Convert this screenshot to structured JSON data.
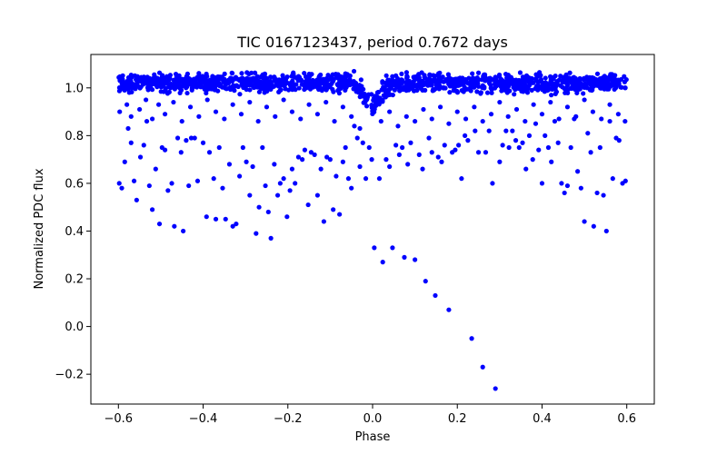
{
  "chart_data": {
    "type": "scatter",
    "title": "TIC 0167123437, period 0.7672 days",
    "xlabel": "Phase",
    "ylabel": "Normalized PDC flux",
    "xlim": [
      -0.665,
      0.665
    ],
    "ylim": [
      -0.325,
      1.14
    ],
    "xticks": [
      -0.6,
      -0.4,
      -0.2,
      0.0,
      0.2,
      0.4,
      0.6
    ],
    "xtick_labels": [
      "−0.6",
      "−0.4",
      "−0.2",
      "0.0",
      "0.2",
      "0.4",
      "0.6"
    ],
    "yticks": [
      -0.2,
      0.0,
      0.2,
      0.4,
      0.6,
      0.8,
      1.0
    ],
    "ytick_labels": [
      "−0.2",
      "0.0",
      "0.2",
      "0.4",
      "0.6",
      "0.8",
      "1.0"
    ],
    "grid": false,
    "marker_color": "#0000ff",
    "dense_band": {
      "x_range": [
        -0.6,
        0.6
      ],
      "y_center": 1.02,
      "y_spread": 0.035,
      "dip_center": 0.0,
      "dip_depth": 0.1,
      "dip_halfwidth": 0.04
    },
    "series": [
      {
        "values": [
          [
            -0.598,
            0.6
          ],
          [
            -0.592,
            0.58
          ],
          [
            -0.585,
            0.69
          ],
          [
            -0.577,
            0.83
          ],
          [
            -0.57,
            0.77
          ],
          [
            -0.563,
            0.61
          ],
          [
            -0.557,
            0.53
          ],
          [
            -0.548,
            0.71
          ],
          [
            -0.54,
            0.76
          ],
          [
            -0.533,
            0.86
          ],
          [
            -0.527,
            0.59
          ],
          [
            -0.52,
            0.49
          ],
          [
            -0.512,
            0.66
          ],
          [
            -0.503,
            0.43
          ],
          [
            -0.497,
            0.75
          ],
          [
            -0.49,
            0.74
          ],
          [
            -0.483,
            0.57
          ],
          [
            -0.474,
            0.6
          ],
          [
            -0.468,
            0.42
          ],
          [
            -0.46,
            0.79
          ],
          [
            -0.452,
            0.73
          ],
          [
            -0.447,
            0.4
          ],
          [
            -0.44,
            0.78
          ],
          [
            -0.434,
            0.59
          ],
          [
            -0.428,
            0.79
          ],
          [
            -0.42,
            0.79
          ],
          [
            -0.413,
            0.61
          ],
          [
            -0.4,
            0.77
          ],
          [
            -0.392,
            0.46
          ],
          [
            -0.385,
            0.73
          ],
          [
            -0.375,
            0.62
          ],
          [
            -0.37,
            0.45
          ],
          [
            -0.362,
            0.75
          ],
          [
            -0.354,
            0.58
          ],
          [
            -0.347,
            0.45
          ],
          [
            -0.338,
            0.68
          ],
          [
            -0.33,
            0.42
          ],
          [
            -0.322,
            0.43
          ],
          [
            -0.314,
            0.63
          ],
          [
            -0.306,
            0.75
          ],
          [
            -0.298,
            0.69
          ],
          [
            -0.29,
            0.55
          ],
          [
            -0.283,
            0.67
          ],
          [
            -0.275,
            0.39
          ],
          [
            -0.268,
            0.5
          ],
          [
            -0.26,
            0.75
          ],
          [
            -0.253,
            0.59
          ],
          [
            -0.246,
            0.48
          ],
          [
            -0.24,
            0.37
          ],
          [
            -0.232,
            0.68
          ],
          [
            -0.224,
            0.55
          ],
          [
            -0.218,
            0.6
          ],
          [
            -0.21,
            0.62
          ],
          [
            -0.202,
            0.46
          ],
          [
            -0.195,
            0.57
          ],
          [
            -0.19,
            0.66
          ],
          [
            -0.183,
            0.6
          ],
          [
            -0.175,
            0.71
          ],
          [
            -0.166,
            0.7
          ],
          [
            -0.16,
            0.74
          ],
          [
            -0.152,
            0.51
          ],
          [
            -0.145,
            0.73
          ],
          [
            -0.137,
            0.72
          ],
          [
            -0.13,
            0.55
          ],
          [
            -0.122,
            0.66
          ],
          [
            -0.115,
            0.44
          ],
          [
            -0.108,
            0.71
          ],
          [
            -0.1,
            0.7
          ],
          [
            -0.093,
            0.49
          ],
          [
            -0.086,
            0.63
          ],
          [
            -0.078,
            0.47
          ],
          [
            -0.07,
            0.69
          ],
          [
            -0.064,
            0.75
          ],
          [
            -0.057,
            0.62
          ],
          [
            -0.05,
            0.58
          ],
          [
            -0.043,
            0.84
          ],
          [
            -0.036,
            0.79
          ],
          [
            -0.03,
            0.67
          ],
          [
            -0.023,
            0.77
          ],
          [
            -0.016,
            0.62
          ],
          [
            -0.008,
            0.75
          ],
          [
            -0.002,
            0.7
          ],
          [
            0.004,
            0.33
          ],
          [
            0.016,
            0.62
          ],
          [
            0.024,
            0.27
          ],
          [
            0.032,
            0.7
          ],
          [
            0.04,
            0.67
          ],
          [
            0.047,
            0.33
          ],
          [
            0.055,
            0.76
          ],
          [
            0.063,
            0.72
          ],
          [
            0.07,
            0.75
          ],
          [
            0.075,
            0.29
          ],
          [
            0.083,
            0.68
          ],
          [
            0.09,
            0.77
          ],
          [
            0.1,
            0.28
          ],
          [
            0.11,
            0.72
          ],
          [
            0.118,
            0.66
          ],
          [
            0.125,
            0.19
          ],
          [
            0.133,
            0.79
          ],
          [
            0.14,
            0.73
          ],
          [
            0.148,
            0.13
          ],
          [
            0.155,
            0.71
          ],
          [
            0.163,
            0.69
          ],
          [
            0.17,
            0.76
          ],
          [
            0.18,
            0.07
          ],
          [
            0.188,
            0.73
          ],
          [
            0.195,
            0.74
          ],
          [
            0.203,
            0.76
          ],
          [
            0.21,
            0.62
          ],
          [
            0.218,
            0.8
          ],
          [
            0.225,
            0.78
          ],
          [
            0.234,
            -0.05
          ],
          [
            0.242,
            0.82
          ],
          [
            0.25,
            0.73
          ],
          [
            0.26,
            -0.17
          ],
          [
            0.267,
            0.73
          ],
          [
            0.275,
            0.82
          ],
          [
            0.29,
            -0.26
          ],
          [
            0.283,
            0.6
          ],
          [
            0.3,
            0.69
          ],
          [
            0.307,
            0.76
          ],
          [
            0.315,
            0.82
          ],
          [
            0.322,
            0.75
          ],
          [
            0.33,
            0.82
          ],
          [
            0.338,
            0.78
          ],
          [
            0.346,
            0.75
          ],
          [
            0.354,
            0.77
          ],
          [
            0.362,
            0.66
          ],
          [
            0.37,
            0.8
          ],
          [
            0.378,
            0.7
          ],
          [
            0.385,
            0.85
          ],
          [
            0.392,
            0.74
          ],
          [
            0.4,
            0.6
          ],
          [
            0.407,
            0.8
          ],
          [
            0.415,
            0.75
          ],
          [
            0.422,
            0.69
          ],
          [
            0.43,
            0.86
          ],
          [
            0.438,
            0.77
          ],
          [
            0.446,
            0.6
          ],
          [
            0.453,
            0.56
          ],
          [
            0.46,
            0.59
          ],
          [
            0.468,
            0.75
          ],
          [
            0.476,
            0.87
          ],
          [
            0.484,
            0.65
          ],
          [
            0.492,
            0.58
          ],
          [
            0.5,
            0.44
          ],
          [
            0.508,
            0.81
          ],
          [
            0.515,
            0.73
          ],
          [
            0.522,
            0.42
          ],
          [
            0.53,
            0.56
          ],
          [
            0.537,
            0.75
          ],
          [
            0.545,
            0.55
          ],
          [
            0.552,
            0.4
          ],
          [
            0.56,
            0.86
          ],
          [
            0.567,
            0.62
          ],
          [
            0.575,
            0.79
          ],
          [
            0.582,
            0.78
          ],
          [
            0.59,
            0.6
          ],
          [
            0.597,
            0.61
          ],
          [
            -0.597,
            0.9
          ],
          [
            -0.58,
            0.93
          ],
          [
            -0.57,
            0.88
          ],
          [
            -0.55,
            0.91
          ],
          [
            -0.535,
            0.95
          ],
          [
            -0.52,
            0.87
          ],
          [
            -0.505,
            0.93
          ],
          [
            -0.49,
            0.89
          ],
          [
            -0.47,
            0.94
          ],
          [
            -0.45,
            0.86
          ],
          [
            -0.43,
            0.92
          ],
          [
            -0.41,
            0.88
          ],
          [
            -0.39,
            0.95
          ],
          [
            -0.37,
            0.9
          ],
          [
            -0.35,
            0.87
          ],
          [
            -0.33,
            0.93
          ],
          [
            -0.31,
            0.89
          ],
          [
            -0.29,
            0.94
          ],
          [
            -0.27,
            0.86
          ],
          [
            -0.25,
            0.92
          ],
          [
            -0.23,
            0.88
          ],
          [
            -0.21,
            0.95
          ],
          [
            -0.19,
            0.9
          ],
          [
            -0.17,
            0.87
          ],
          [
            -0.15,
            0.93
          ],
          [
            -0.13,
            0.89
          ],
          [
            -0.11,
            0.94
          ],
          [
            -0.09,
            0.86
          ],
          [
            -0.07,
            0.92
          ],
          [
            -0.05,
            0.88
          ],
          [
            -0.03,
            0.83
          ],
          [
            0.02,
            0.86
          ],
          [
            0.04,
            0.9
          ],
          [
            0.06,
            0.84
          ],
          [
            0.08,
            0.88
          ],
          [
            0.1,
            0.86
          ],
          [
            0.12,
            0.91
          ],
          [
            0.14,
            0.87
          ],
          [
            0.16,
            0.92
          ],
          [
            0.18,
            0.85
          ],
          [
            0.2,
            0.9
          ],
          [
            0.22,
            0.87
          ],
          [
            0.24,
            0.92
          ],
          [
            0.26,
            0.86
          ],
          [
            0.28,
            0.89
          ],
          [
            0.3,
            0.94
          ],
          [
            0.32,
            0.88
          ],
          [
            0.34,
            0.91
          ],
          [
            0.36,
            0.86
          ],
          [
            0.38,
            0.93
          ],
          [
            0.4,
            0.89
          ],
          [
            0.42,
            0.94
          ],
          [
            0.44,
            0.87
          ],
          [
            0.46,
            0.92
          ],
          [
            0.48,
            0.88
          ],
          [
            0.5,
            0.95
          ],
          [
            0.52,
            0.9
          ],
          [
            0.54,
            0.87
          ],
          [
            0.56,
            0.93
          ],
          [
            0.58,
            0.89
          ],
          [
            0.596,
            0.86
          ]
        ]
      }
    ]
  }
}
